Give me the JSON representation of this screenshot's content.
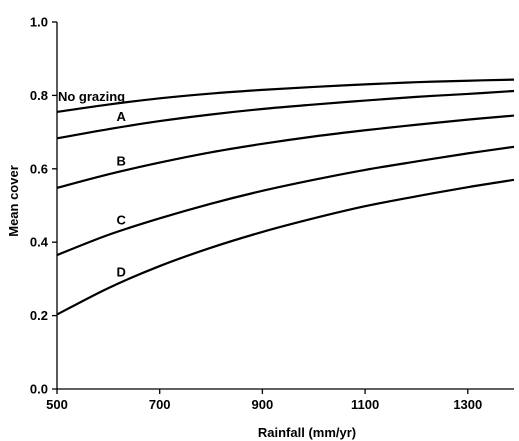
{
  "chart_data": {
    "type": "line",
    "title": "",
    "xlabel": "Rainfall (mm/yr)",
    "ylabel": "Mean cover",
    "xlim": [
      500,
      1390
    ],
    "ylim": [
      0.0,
      1.0
    ],
    "x_ticks": [
      500,
      700,
      900,
      1100,
      1300
    ],
    "y_ticks": [
      0.0,
      0.2,
      0.4,
      0.6,
      0.8,
      1.0
    ],
    "x_tick_labels": [
      "500",
      "700",
      "900",
      "1100",
      "1300"
    ],
    "y_tick_labels": [
      "0.0",
      "0.2",
      "0.4",
      "0.6",
      "0.8",
      "1.0"
    ],
    "grid": false,
    "legend": "none (curves labelled inline)",
    "x": [
      500,
      600,
      700,
      800,
      900,
      1000,
      1100,
      1200,
      1300,
      1390
    ],
    "series": [
      {
        "name": "No grazing",
        "values": [
          0.755,
          0.775,
          0.792,
          0.805,
          0.815,
          0.823,
          0.83,
          0.836,
          0.84,
          0.843
        ]
      },
      {
        "name": "A",
        "values": [
          0.683,
          0.708,
          0.73,
          0.748,
          0.763,
          0.775,
          0.786,
          0.796,
          0.804,
          0.812
        ]
      },
      {
        "name": "B",
        "values": [
          0.548,
          0.585,
          0.617,
          0.645,
          0.668,
          0.688,
          0.705,
          0.72,
          0.734,
          0.745
        ]
      },
      {
        "name": "C",
        "values": [
          0.365,
          0.42,
          0.465,
          0.505,
          0.54,
          0.57,
          0.597,
          0.62,
          0.642,
          0.66
        ]
      },
      {
        "name": "D",
        "values": [
          0.203,
          0.275,
          0.335,
          0.385,
          0.428,
          0.465,
          0.498,
          0.525,
          0.55,
          0.57
        ]
      }
    ]
  }
}
